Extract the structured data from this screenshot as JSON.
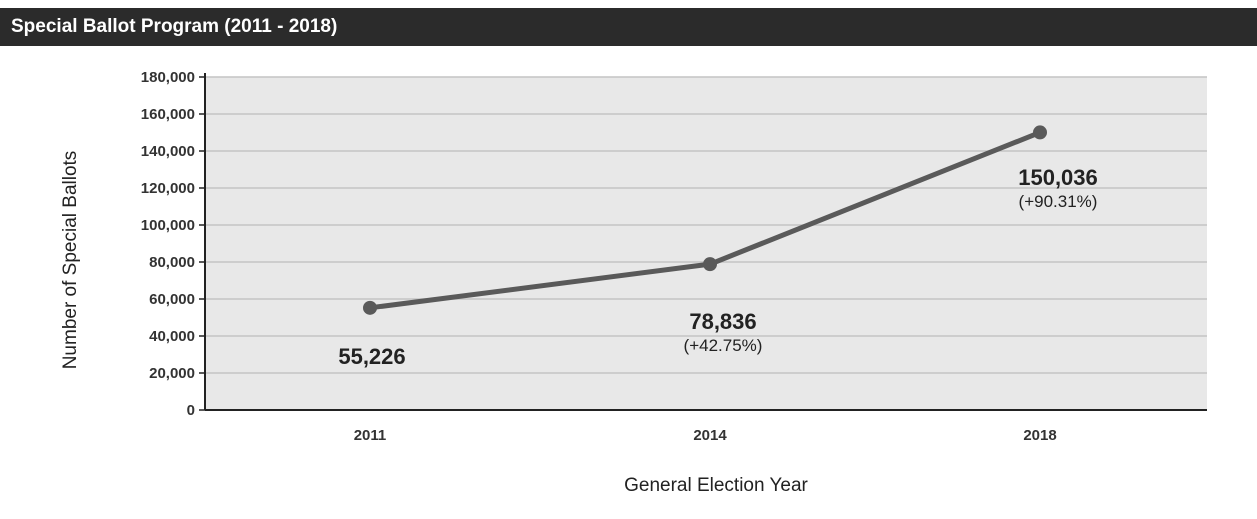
{
  "header": {
    "title": "Special Ballot Program (2011 - 2018)"
  },
  "chart_data": {
    "type": "line",
    "title": "Special Ballot Program (2011 - 2018)",
    "xlabel": "General Election Year",
    "ylabel": "Number of Special Ballots",
    "categories": [
      "2011",
      "2014",
      "2018"
    ],
    "values": [
      55226,
      78836,
      150036
    ],
    "data_labels": [
      "55,226",
      "78,836",
      "150,036"
    ],
    "change_labels": [
      "",
      "(+42.75%)",
      "(+90.31%)"
    ],
    "yticks": [
      "0",
      "20,000",
      "40,000",
      "60,000",
      "80,000",
      "100,000",
      "120,000",
      "140,000",
      "160,000",
      "180,000"
    ],
    "ytick_values": [
      0,
      20000,
      40000,
      60000,
      80000,
      100000,
      120000,
      140000,
      160000,
      180000
    ],
    "ylim": [
      0,
      180000
    ],
    "grid": true,
    "colors": {
      "line": "#5a5a5a",
      "plot_bg": "#e8e8e8",
      "grid": "#c4c4c4",
      "title_bg": "#2b2b2b"
    }
  }
}
